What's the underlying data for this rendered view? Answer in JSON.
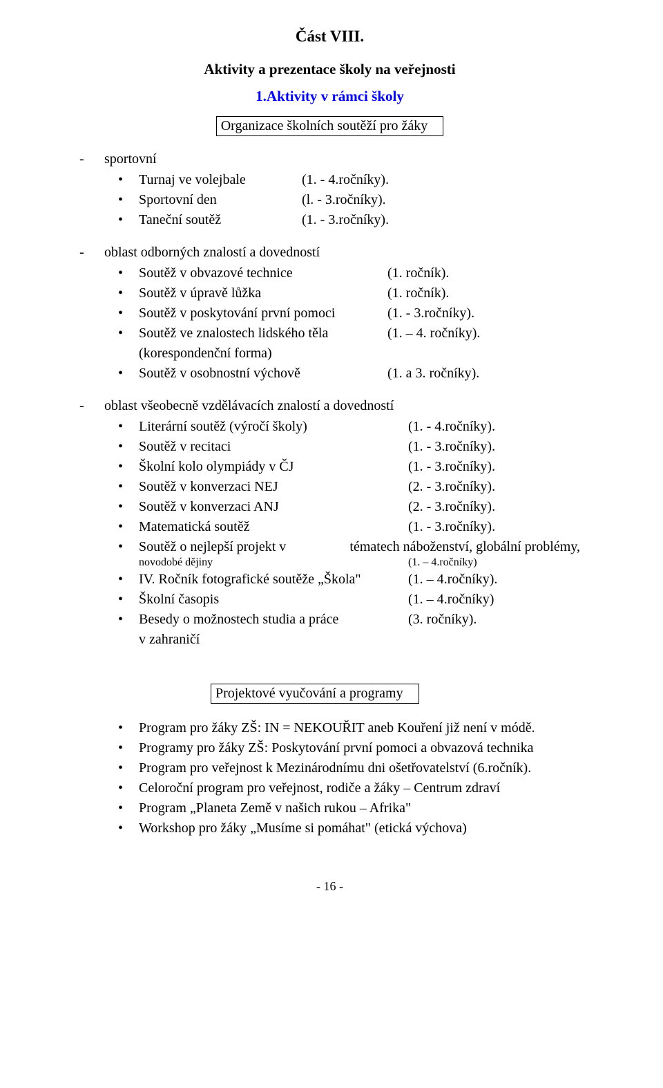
{
  "title": "Část VIII.",
  "subtitle": "Aktivity a prezentace školy na veřejnosti",
  "sectionNum": "1.Aktivity v rámci školy",
  "box1": "Organizace školních soutěží pro žáky",
  "box2": "Projektové vyučování a programy",
  "groups": {
    "g1": {
      "head": "sportovní",
      "items": [
        {
          "label": "Turnaj ve volejbale",
          "val": "(1. - 4.ročníky)."
        },
        {
          "label": "Sportovní den",
          "val": "(l. - 3.ročníky)."
        },
        {
          "label": "Taneční soutěž",
          "val": "(1. - 3.ročníky)."
        }
      ]
    },
    "g2": {
      "head": "oblast odborných znalostí a dovedností",
      "items": [
        {
          "label": "Soutěž v obvazové technice",
          "val": "(1. ročník)."
        },
        {
          "label": "Soutěž v úpravě lůžka",
          "val": "(1. ročník)."
        },
        {
          "label": "Soutěž v poskytování první pomoci",
          "val": "(1. - 3.ročníky)."
        },
        {
          "label": "Soutěž ve znalostech lidského těla",
          "val": "(1. – 4. ročníky)."
        },
        {
          "label": "(korespondenční forma)",
          "val": ""
        },
        {
          "label": "Soutěž v osobnostní výchově",
          "val": "(1. a 3. ročníky)."
        }
      ]
    },
    "g3": {
      "head": "oblast všeobecně vzdělávacích znalostí a dovedností",
      "items": [
        {
          "label": "Literární soutěž (výročí školy)",
          "val": "(1. - 4.ročníky)."
        },
        {
          "label": "Soutěž v recitaci",
          "val": "(1. - 3.ročníky)."
        },
        {
          "label": "Školní kolo olympiády v ČJ",
          "val": "(1. - 3.ročníky)."
        },
        {
          "label": "Soutěž v konverzaci NEJ",
          "val": "(2. - 3.ročníky)."
        },
        {
          "label": "Soutěž v konverzaci ANJ",
          "val": "(2. - 3.ročníky)."
        },
        {
          "label": "Matematická soutěž",
          "val": "(1. - 3.ročníky)."
        }
      ],
      "long": {
        "l1a": "Soutěž o nejlepší projekt v",
        "l1b": "tématech náboženství, globální problémy,",
        "l2a": "novodobé dějiny",
        "l2b": "(1. – 4.ročníky)"
      },
      "items2": [
        {
          "label": "IV. Ročník fotografické soutěže „Škola\"",
          "val": "(1. – 4.ročníky)."
        },
        {
          "label": "Školní časopis",
          "val": "(1. – 4.ročníky)"
        },
        {
          "label": "Besedy o možnostech studia a práce",
          "val": "(3. ročníky)."
        },
        {
          "label": "v zahraničí",
          "val": ""
        }
      ]
    }
  },
  "programs": [
    "Program pro žáky  ZŠ: IN = NEKOUŘIT aneb Kouření již není  v módě.",
    "Programy pro žáky  ZŠ: Poskytování první pomoci a obvazová technika",
    "Program pro veřejnost k Mezinárodnímu dni ošetřovatelství (6.ročník).",
    "Celoroční program pro veřejnost, rodiče a žáky – Centrum zdraví",
    "Program „Planeta Země v našich rukou – Afrika\"",
    "Workshop pro žáky „Musíme si pomáhat\" (etická výchova)"
  ],
  "footer": "- 16 -",
  "colWidths": {
    "g1": 236,
    "g2": 360,
    "g3": 390
  }
}
